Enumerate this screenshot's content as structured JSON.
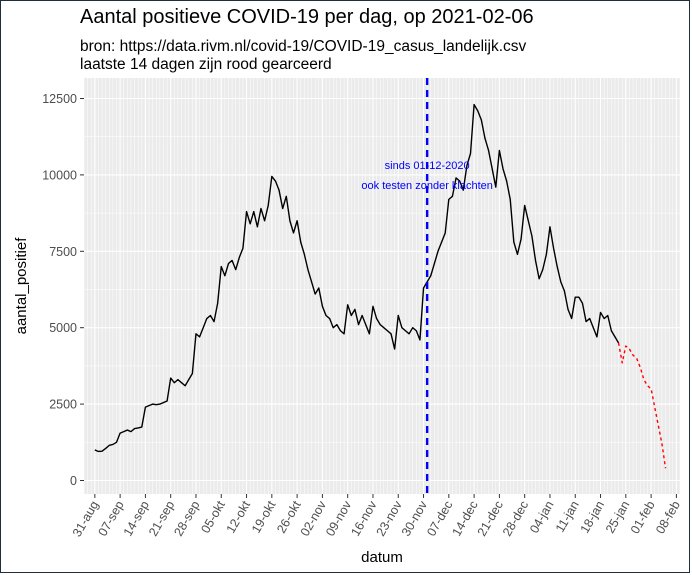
{
  "header": {
    "title": "Aantal positieve COVID-19 per dag, op 2021-02-06",
    "subtitle_line1": "bron: https://data.rivm.nl/covid-19/COVID-19_casus_landelijk.csv",
    "subtitle_line2": "laatste 14 dagen zijn rood gearceerd"
  },
  "chart_data": {
    "type": "line",
    "title": "Aantal positieve COVID-19 per dag, op 2021-02-06",
    "xlabel": "datum",
    "ylabel": "aantal_positief",
    "ylim": [
      0,
      12500
    ],
    "yticks": [
      0,
      2500,
      5000,
      7500,
      10000,
      12500
    ],
    "ytick_labels": [
      "0",
      "2500",
      "5000",
      "7500",
      "10000",
      "12500"
    ],
    "xlim": [
      "2020-08-28",
      "2021-02-09"
    ],
    "xticks": [
      "2020-08-31",
      "2020-09-07",
      "2020-09-14",
      "2020-09-21",
      "2020-09-28",
      "2020-10-05",
      "2020-10-12",
      "2020-10-19",
      "2020-10-26",
      "2020-11-02",
      "2020-11-09",
      "2020-11-16",
      "2020-11-23",
      "2020-11-30",
      "2020-12-07",
      "2020-12-14",
      "2020-12-21",
      "2020-12-28",
      "2021-01-04",
      "2021-01-11",
      "2021-01-18",
      "2021-01-25",
      "2021-02-01",
      "2021-02-08"
    ],
    "xtick_labels": [
      "31-aug",
      "07-sep",
      "14-sep",
      "21-sep",
      "28-sep",
      "05-okt",
      "12-okt",
      "19-okt",
      "26-okt",
      "02-nov",
      "09-nov",
      "16-nov",
      "23-nov",
      "30-nov",
      "07-dec",
      "14-dec",
      "21-dec",
      "28-dec",
      "04-jan",
      "11-jan",
      "18-jan",
      "25-jan",
      "01-feb",
      "08-feb"
    ],
    "grid": true,
    "vline": {
      "x": "2020-12-01",
      "style": "dashed",
      "color": "#0000ff"
    },
    "annotation": {
      "line1": "sinds 01-12-2020",
      "line2": "ook testen zonder klachten",
      "x": "2020-12-01",
      "y": 10000
    },
    "series": [
      {
        "color": "#000000",
        "style": "solid",
        "points": [
          [
            "2020-08-31",
            1000
          ],
          [
            "2020-09-01",
            950
          ],
          [
            "2020-09-02",
            960
          ],
          [
            "2020-09-03",
            1050
          ],
          [
            "2020-09-04",
            1150
          ],
          [
            "2020-09-05",
            1180
          ],
          [
            "2020-09-06",
            1250
          ],
          [
            "2020-09-07",
            1550
          ],
          [
            "2020-09-08",
            1600
          ],
          [
            "2020-09-09",
            1650
          ],
          [
            "2020-09-10",
            1600
          ],
          [
            "2020-09-11",
            1700
          ],
          [
            "2020-09-12",
            1720
          ],
          [
            "2020-09-13",
            1750
          ],
          [
            "2020-09-14",
            2400
          ],
          [
            "2020-09-15",
            2450
          ],
          [
            "2020-09-16",
            2500
          ],
          [
            "2020-09-17",
            2480
          ],
          [
            "2020-09-18",
            2500
          ],
          [
            "2020-09-19",
            2550
          ],
          [
            "2020-09-20",
            2600
          ],
          [
            "2020-09-21",
            3350
          ],
          [
            "2020-09-22",
            3200
          ],
          [
            "2020-09-23",
            3300
          ],
          [
            "2020-09-24",
            3200
          ],
          [
            "2020-09-25",
            3100
          ],
          [
            "2020-09-26",
            3300
          ],
          [
            "2020-09-27",
            3500
          ],
          [
            "2020-09-28",
            4800
          ],
          [
            "2020-09-29",
            4700
          ],
          [
            "2020-09-30",
            5000
          ],
          [
            "2020-10-01",
            5300
          ],
          [
            "2020-10-02",
            5400
          ],
          [
            "2020-10-03",
            5200
          ],
          [
            "2020-10-04",
            5800
          ],
          [
            "2020-10-05",
            7000
          ],
          [
            "2020-10-06",
            6700
          ],
          [
            "2020-10-07",
            7100
          ],
          [
            "2020-10-08",
            7200
          ],
          [
            "2020-10-09",
            6900
          ],
          [
            "2020-10-10",
            7300
          ],
          [
            "2020-10-11",
            7600
          ],
          [
            "2020-10-12",
            8800
          ],
          [
            "2020-10-13",
            8400
          ],
          [
            "2020-10-14",
            8800
          ],
          [
            "2020-10-15",
            8300
          ],
          [
            "2020-10-16",
            8900
          ],
          [
            "2020-10-17",
            8500
          ],
          [
            "2020-10-18",
            9000
          ],
          [
            "2020-10-19",
            9950
          ],
          [
            "2020-10-20",
            9800
          ],
          [
            "2020-10-21",
            9500
          ],
          [
            "2020-10-22",
            8900
          ],
          [
            "2020-10-23",
            9300
          ],
          [
            "2020-10-24",
            8500
          ],
          [
            "2020-10-25",
            8100
          ],
          [
            "2020-10-26",
            8500
          ],
          [
            "2020-10-27",
            7800
          ],
          [
            "2020-10-28",
            7400
          ],
          [
            "2020-10-29",
            6900
          ],
          [
            "2020-10-30",
            6500
          ],
          [
            "2020-10-31",
            6100
          ],
          [
            "2020-11-01",
            6300
          ],
          [
            "2020-11-02",
            5700
          ],
          [
            "2020-11-03",
            5400
          ],
          [
            "2020-11-04",
            5300
          ],
          [
            "2020-11-05",
            5000
          ],
          [
            "2020-11-06",
            5100
          ],
          [
            "2020-11-07",
            4900
          ],
          [
            "2020-11-08",
            4800
          ],
          [
            "2020-11-09",
            5750
          ],
          [
            "2020-11-10",
            5400
          ],
          [
            "2020-11-11",
            5600
          ],
          [
            "2020-11-12",
            5100
          ],
          [
            "2020-11-13",
            5400
          ],
          [
            "2020-11-14",
            5100
          ],
          [
            "2020-11-15",
            4800
          ],
          [
            "2020-11-16",
            5700
          ],
          [
            "2020-11-17",
            5300
          ],
          [
            "2020-11-18",
            5100
          ],
          [
            "2020-11-19",
            5000
          ],
          [
            "2020-11-20",
            4900
          ],
          [
            "2020-11-21",
            4800
          ],
          [
            "2020-11-22",
            4300
          ],
          [
            "2020-11-23",
            5400
          ],
          [
            "2020-11-24",
            5000
          ],
          [
            "2020-11-25",
            4900
          ],
          [
            "2020-11-26",
            4800
          ],
          [
            "2020-11-27",
            5000
          ],
          [
            "2020-11-28",
            4900
          ],
          [
            "2020-11-29",
            4600
          ],
          [
            "2020-11-30",
            6300
          ],
          [
            "2020-12-01",
            6500
          ],
          [
            "2020-12-02",
            6700
          ],
          [
            "2020-12-03",
            7100
          ],
          [
            "2020-12-04",
            7500
          ],
          [
            "2020-12-05",
            7800
          ],
          [
            "2020-12-06",
            8100
          ],
          [
            "2020-12-07",
            9200
          ],
          [
            "2020-12-08",
            9300
          ],
          [
            "2020-12-09",
            9900
          ],
          [
            "2020-12-10",
            9800
          ],
          [
            "2020-12-11",
            9500
          ],
          [
            "2020-12-12",
            10300
          ],
          [
            "2020-12-13",
            10700
          ],
          [
            "2020-12-14",
            12300
          ],
          [
            "2020-12-15",
            12100
          ],
          [
            "2020-12-16",
            11800
          ],
          [
            "2020-12-17",
            11200
          ],
          [
            "2020-12-18",
            10800
          ],
          [
            "2020-12-19",
            10200
          ],
          [
            "2020-12-20",
            9600
          ],
          [
            "2020-12-21",
            10800
          ],
          [
            "2020-12-22",
            10200
          ],
          [
            "2020-12-23",
            9800
          ],
          [
            "2020-12-24",
            9200
          ],
          [
            "2020-12-25",
            7800
          ],
          [
            "2020-12-26",
            7400
          ],
          [
            "2020-12-27",
            7900
          ],
          [
            "2020-12-28",
            9000
          ],
          [
            "2020-12-29",
            8500
          ],
          [
            "2020-12-30",
            8000
          ],
          [
            "2020-12-31",
            7200
          ],
          [
            "2021-01-01",
            6600
          ],
          [
            "2021-01-02",
            6900
          ],
          [
            "2021-01-03",
            7400
          ],
          [
            "2021-01-04",
            8300
          ],
          [
            "2021-01-05",
            7600
          ],
          [
            "2021-01-06",
            7000
          ],
          [
            "2021-01-07",
            6500
          ],
          [
            "2021-01-08",
            6200
          ],
          [
            "2021-01-09",
            5600
          ],
          [
            "2021-01-10",
            5300
          ],
          [
            "2021-01-11",
            6000
          ],
          [
            "2021-01-12",
            6000
          ],
          [
            "2021-01-13",
            5800
          ],
          [
            "2021-01-14",
            5200
          ],
          [
            "2021-01-15",
            5300
          ],
          [
            "2021-01-16",
            5000
          ],
          [
            "2021-01-17",
            4700
          ],
          [
            "2021-01-18",
            5500
          ],
          [
            "2021-01-19",
            5300
          ],
          [
            "2021-01-20",
            5400
          ],
          [
            "2021-01-21",
            4900
          ],
          [
            "2021-01-22",
            4700
          ],
          [
            "2021-01-23",
            4500
          ]
        ]
      },
      {
        "color": "#ff0000",
        "style": "dashed",
        "points": [
          [
            "2021-01-23",
            4500
          ],
          [
            "2021-01-24",
            3850
          ],
          [
            "2021-01-25",
            4400
          ],
          [
            "2021-01-26",
            4300
          ],
          [
            "2021-01-27",
            4100
          ],
          [
            "2021-01-28",
            4000
          ],
          [
            "2021-01-29",
            3700
          ],
          [
            "2021-01-30",
            3300
          ],
          [
            "2021-01-31",
            3100
          ],
          [
            "2021-02-01",
            3000
          ],
          [
            "2021-02-02",
            2400
          ],
          [
            "2021-02-03",
            1800
          ],
          [
            "2021-02-04",
            1200
          ],
          [
            "2021-02-05",
            400
          ]
        ]
      }
    ]
  }
}
